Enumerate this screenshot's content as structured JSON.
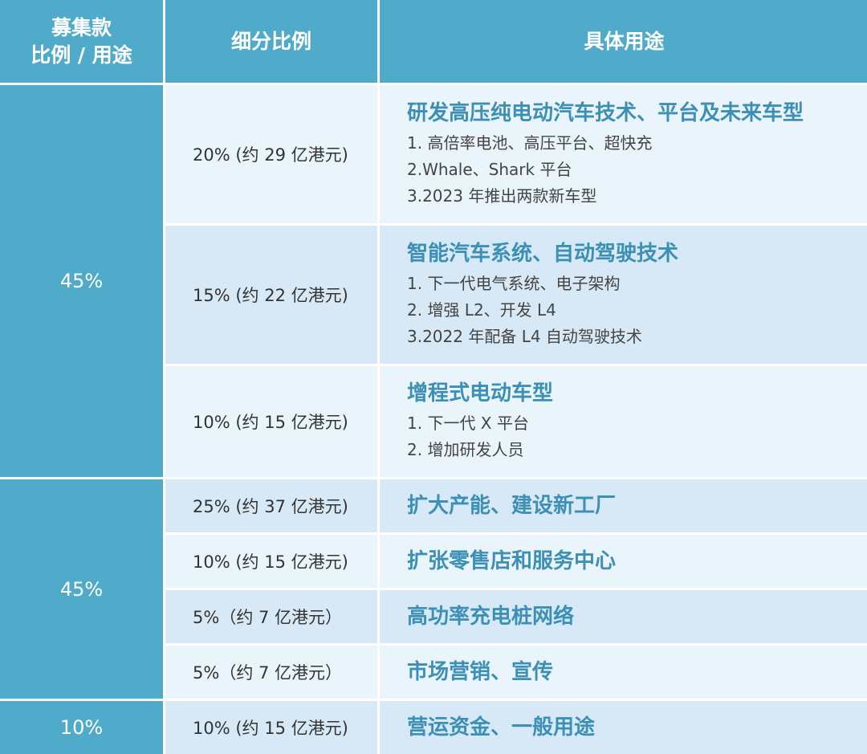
{
  "colors": {
    "header_bg": "#4fabc9",
    "row_light": "#eaf4fb",
    "row_mid": "#d7e9f6",
    "title_blue": "#3c8fb5"
  },
  "header": {
    "col1_line1": "募集款",
    "col1_line2": "比例 / 用途",
    "col2": "细分比例",
    "col3": "具体用途"
  },
  "groups": [
    "45%",
    "45%",
    "10%"
  ],
  "rows": [
    {
      "ratio": "20% (约 29 亿港元)",
      "title": "研发高压纯电动汽车技术、平台及未来车型",
      "items": [
        "1. 高倍率电池、高压平台、超快充",
        "2.Whale、Shark 平台",
        "3.2023 年推出两款新车型"
      ]
    },
    {
      "ratio": "15% (约 22 亿港元)",
      "title": "智能汽车系统、自动驾驶技术",
      "items": [
        "1. 下一代电气系统、电子架构",
        "2. 增强 L2、开发 L4",
        "3.2022 年配备 L4 自动驾驶技术"
      ]
    },
    {
      "ratio": "10% (约 15 亿港元)",
      "title": "增程式电动车型",
      "items": [
        "1. 下一代 X 平台",
        "2. 增加研发人员"
      ]
    },
    {
      "ratio": "25% (约 37 亿港元)",
      "title": "扩大产能、建设新工厂"
    },
    {
      "ratio": "10% (约 15 亿港元)",
      "title": "扩张零售店和服务中心"
    },
    {
      "ratio": "5%（约 7 亿港元）",
      "title": "高功率充电桩网络"
    },
    {
      "ratio": "5%（约 7 亿港元）",
      "title": "市场营销、宣传"
    },
    {
      "ratio": "10% (约 15 亿港元)",
      "title": "营运资金、一般用途"
    }
  ]
}
